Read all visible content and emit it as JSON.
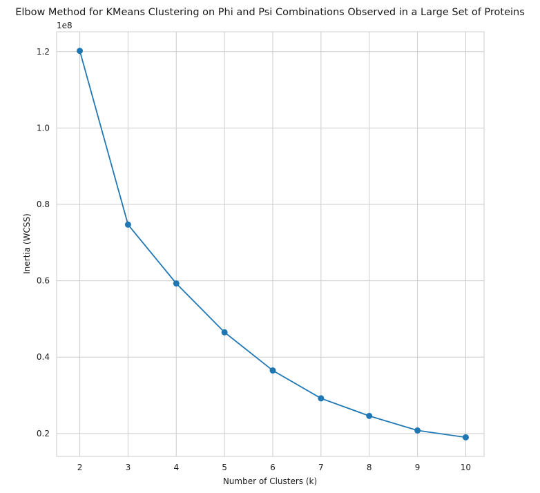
{
  "chart_data": {
    "type": "line",
    "title": "Elbow Method for KMeans Clustering on Phi and Psi Combinations Observed in a Large Set of Proteins",
    "xlabel": "Number of Clusters (k)",
    "ylabel": "Inertia (WCSS)",
    "y_offset_label": "1e8",
    "x": [
      2,
      3,
      4,
      5,
      6,
      7,
      8,
      9,
      10
    ],
    "series": [
      {
        "values": [
          120200000,
          74700000,
          59300000,
          46500000,
          36500000,
          29200000,
          24600000,
          20800000,
          19000000
        ]
      }
    ],
    "xlim": [
      1.52,
      10.38
    ],
    "ylim": [
      14000000,
      125200000
    ],
    "x_ticks": [
      2,
      3,
      4,
      5,
      6,
      7,
      8,
      9,
      10
    ],
    "x_tick_labels": [
      "2",
      "3",
      "4",
      "5",
      "6",
      "7",
      "8",
      "9",
      "10"
    ],
    "y_ticks": [
      20000000,
      40000000,
      60000000,
      80000000,
      100000000,
      120000000
    ],
    "y_tick_labels": [
      "0.2",
      "0.4",
      "0.6",
      "0.8",
      "1.0",
      "1.2"
    ],
    "grid": true,
    "marker": "circle",
    "colors": {
      "line": "#1f77b4",
      "grid": "#cccccc"
    }
  }
}
